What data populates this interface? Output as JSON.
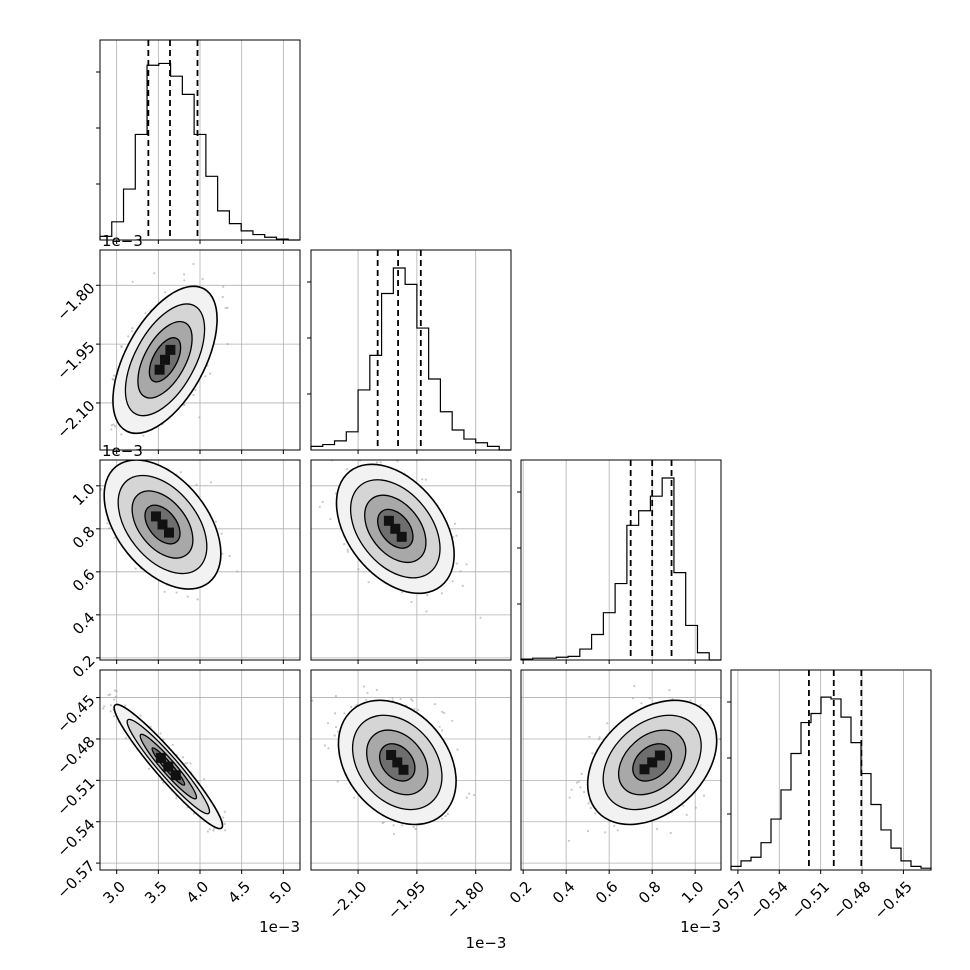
{
  "chart_data": {
    "type": "corner",
    "parameters": [
      {
        "index": 0,
        "range": [
          2.8,
          5.2
        ],
        "ticks": [
          3.0,
          3.5,
          4.0,
          4.5,
          5.0
        ],
        "tick_labels": [
          "3.0",
          "3.5",
          "4.0",
          "4.5",
          "5.0"
        ],
        "offset_label": "1e−3",
        "quantiles": [
          3.38,
          3.64,
          3.97
        ],
        "histogram": [
          0.02,
          0.1,
          0.28,
          0.58,
          0.96,
          0.97,
          0.9,
          0.8,
          0.58,
          0.35,
          0.16,
          0.09,
          0.05,
          0.03,
          0.015,
          0.005,
          0.0
        ]
      },
      {
        "index": 1,
        "range": [
          -2.22,
          -1.71
        ],
        "ticks": [
          -2.1,
          -1.95,
          -1.8
        ],
        "tick_labels": [
          "−2.10",
          "−1.95",
          "−1.80"
        ],
        "offset_label": "1e−3",
        "quantiles": [
          -2.05,
          -1.998,
          -1.94
        ],
        "histogram": [
          0.02,
          0.03,
          0.05,
          0.1,
          0.33,
          0.52,
          0.86,
          1.0,
          0.91,
          0.67,
          0.39,
          0.21,
          0.11,
          0.06,
          0.04,
          0.02,
          0.0
        ]
      },
      {
        "index": 2,
        "range": [
          0.19,
          1.12
        ],
        "ticks": [
          0.2,
          0.4,
          0.6,
          0.8,
          1.0
        ],
        "tick_labels": [
          "0.2",
          "0.4",
          "0.6",
          "0.8",
          "1.0"
        ],
        "offset_label": "1e−3",
        "quantiles": [
          0.7,
          0.8,
          0.89
        ],
        "histogram": [
          0.005,
          0.01,
          0.01,
          0.015,
          0.02,
          0.06,
          0.14,
          0.26,
          0.42,
          0.74,
          0.82,
          0.9,
          1.0,
          0.48,
          0.19,
          0.04,
          0.0
        ]
      },
      {
        "index": 3,
        "range": [
          -0.575,
          -0.43
        ],
        "ticks": [
          -0.57,
          -0.54,
          -0.51,
          -0.48,
          -0.45
        ],
        "tick_labels": [
          "−0.57",
          "−0.54",
          "−0.51",
          "−0.48",
          "−0.45"
        ],
        "quantiles": [
          -0.5185,
          -0.5005,
          -0.4805
        ],
        "histogram": [
          0.02,
          0.05,
          0.07,
          0.15,
          0.28,
          0.44,
          0.64,
          0.81,
          0.86,
          0.95,
          0.94,
          0.84,
          0.7,
          0.53,
          0.36,
          0.22,
          0.12,
          0.05,
          0.02,
          0.01
        ]
      }
    ],
    "pairs": [
      {
        "x": 0,
        "y": 1,
        "mean": [
          3.58,
          -1.99
        ],
        "sd": [
          0.25,
          0.075
        ],
        "corr": 0.55
      },
      {
        "x": 0,
        "y": 2,
        "mean": [
          3.55,
          0.82
        ],
        "sd": [
          0.28,
          0.12
        ],
        "corr": -0.45
      },
      {
        "x": 1,
        "y": 2,
        "mean": [
          -2.005,
          0.8
        ],
        "sd": [
          0.06,
          0.12
        ],
        "corr": -0.4
      },
      {
        "x": 0,
        "y": 3,
        "mean": [
          3.62,
          -0.5
        ],
        "sd": [
          0.26,
          0.018
        ],
        "corr": -0.95
      },
      {
        "x": 1,
        "y": 3,
        "mean": [
          -2.0,
          -0.497
        ],
        "sd": [
          0.06,
          0.018
        ],
        "corr": -0.3
      },
      {
        "x": 2,
        "y": 3,
        "mean": [
          0.8,
          -0.497
        ],
        "sd": [
          0.12,
          0.018
        ],
        "corr": 0.35
      }
    ],
    "grid": true
  }
}
